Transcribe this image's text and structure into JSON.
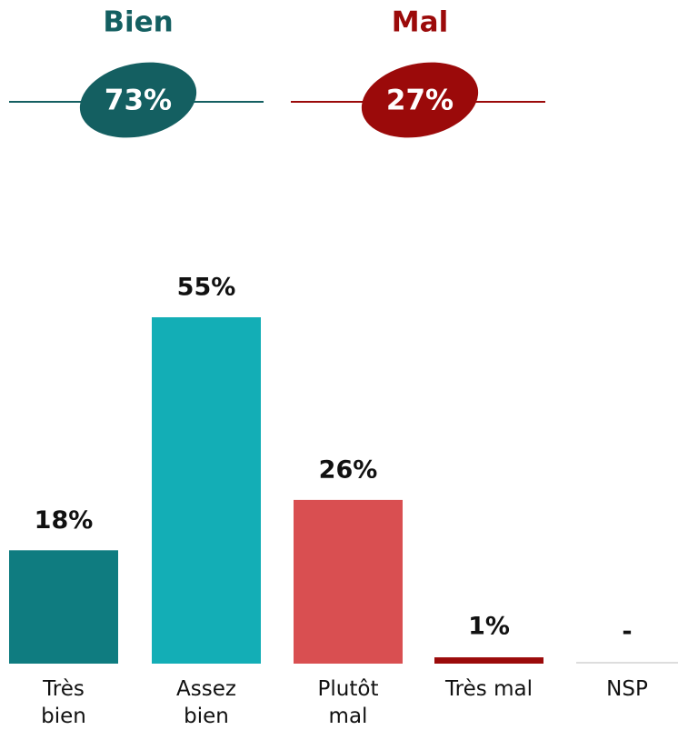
{
  "summary": [
    {
      "label": "Bien",
      "value": 73,
      "value_label": "73%",
      "color": "#145f61"
    },
    {
      "label": "Mal",
      "value": 27,
      "value_label": "27%",
      "color": "#9b0a0a"
    }
  ],
  "chart_data": {
    "type": "bar",
    "categories": [
      "Très\nbien",
      "Assez\nbien",
      "Plutôt\nmal",
      "Très mal",
      "NSP"
    ],
    "values": [
      18,
      55,
      26,
      1,
      null
    ],
    "value_labels": [
      "18%",
      "55%",
      "26%",
      "1%",
      "-"
    ],
    "colors": [
      "#0f7c80",
      "#13aeb6",
      "#d94f51",
      "#9b0a0a",
      "#bbbbbb"
    ],
    "ylim": [
      0,
      55
    ]
  }
}
